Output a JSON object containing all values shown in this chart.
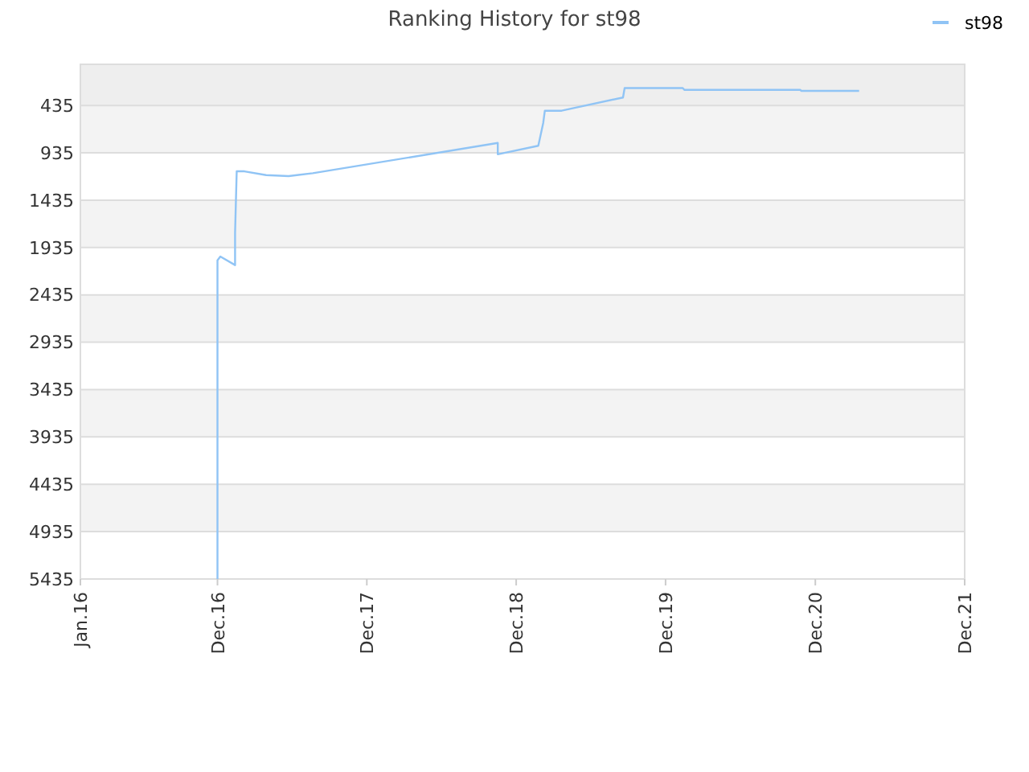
{
  "chart_data": {
    "type": "line",
    "title": "Ranking History for st98",
    "x": [
      "2016-12-01",
      "2016-12-01",
      "2016-12-08",
      "2017-01-13",
      "2017-01-13",
      "2017-01-17",
      "2017-02-05",
      "2017-03-30",
      "2017-05-24",
      "2017-06-13",
      "2017-07-22",
      "2018-10-17",
      "2018-10-17",
      "2019-01-24",
      "2019-02-05",
      "2019-02-09",
      "2019-03-22",
      "2019-08-19",
      "2019-08-23",
      "2020-01-12",
      "2020-01-16",
      "2020-10-25",
      "2020-10-28",
      "2021-03-18"
    ],
    "series": [
      {
        "name": "st98",
        "color": "#90c4f5",
        "values": [
          5435,
          2070,
          2030,
          2120,
          1780,
          1130,
          1130,
          1170,
          1180,
          1170,
          1150,
          830,
          950,
          860,
          620,
          490,
          490,
          350,
          250,
          250,
          270,
          270,
          280,
          280
        ]
      }
    ],
    "xlim": [
      "2016-01-01",
      "2021-12-01"
    ],
    "xticks": [
      {
        "value": "2016-01-01",
        "label": "Jan.16"
      },
      {
        "value": "2016-12-01",
        "label": "Dec.16"
      },
      {
        "value": "2017-12-01",
        "label": "Dec.17"
      },
      {
        "value": "2018-12-01",
        "label": "Dec.18"
      },
      {
        "value": "2019-12-01",
        "label": "Dec.19"
      },
      {
        "value": "2020-12-01",
        "label": "Dec.20"
      },
      {
        "value": "2021-12-01",
        "label": "Dec.21"
      }
    ],
    "ylim": [
      5435,
      0
    ],
    "yticks": [
      435,
      935,
      1435,
      1935,
      2435,
      2935,
      3435,
      3935,
      4435,
      4935,
      5435
    ],
    "bands": [
      {
        "axis": "y",
        "from": 435,
        "to": 0,
        "color": "#eeeeee"
      }
    ],
    "grid": "y",
    "legend": "top right"
  }
}
